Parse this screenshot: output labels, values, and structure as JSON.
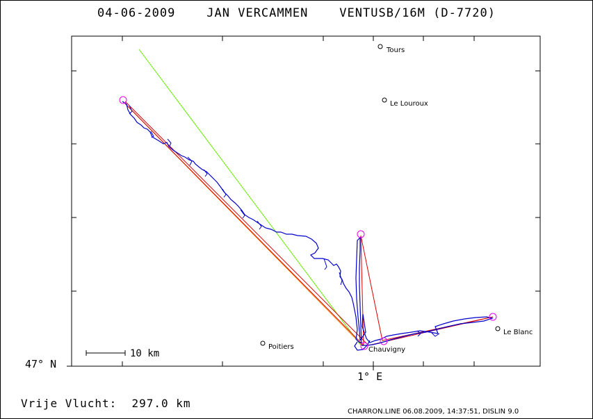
{
  "title": "04-06-2009    JAN VERCAMMEN    VENTUSB/16M (D-7720)",
  "axes": {
    "lat_label": "47° N",
    "lon_label": "1° E"
  },
  "scale_bar": {
    "label": "10 km"
  },
  "towns": [
    {
      "name": "Tours"
    },
    {
      "name": "Le Louroux"
    },
    {
      "name": "Poitiers"
    },
    {
      "name": "Chauvigny"
    },
    {
      "name": "Le Blanc"
    }
  ],
  "distance_text": "Vrije Vlucht:  297.0 km",
  "footer": "CHARRON.LINE 06.08.2009, 14:37:51, DISLIN 9.0",
  "colors": {
    "track": "#0000cc",
    "task_line": "#dd0000",
    "olc_line": "#ff8800",
    "reference_line": "#66ee00",
    "turnpoint": "#ee00ee"
  }
}
